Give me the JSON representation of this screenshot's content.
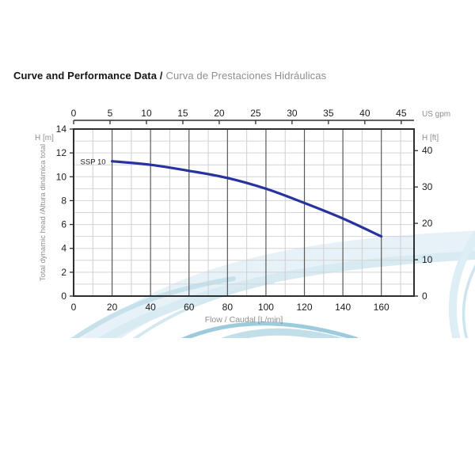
{
  "page": {
    "title_bold": "Curve and Performance Data /",
    "title_gray": "Curva de Prestaciones Hidráulicas"
  },
  "chart_data": {
    "type": "line",
    "title": "Curve and Performance Data / Curva de Prestaciones Hidráulicas",
    "series": [
      {
        "name": "SSP 10",
        "color": "#27339E",
        "x": [
          20,
          40,
          60,
          80,
          100,
          120,
          140,
          160
        ],
        "y": [
          11.3,
          11.0,
          10.5,
          9.9,
          9.0,
          7.8,
          6.5,
          5.0
        ]
      }
    ],
    "axes": {
      "x_bottom": {
        "title": "Flow / Caudal [L/min]",
        "min": 0,
        "max": 177,
        "major_ticks": [
          0,
          20,
          40,
          60,
          80,
          100,
          120,
          140,
          160
        ],
        "minor_tick_step": 10
      },
      "x_top": {
        "unit_label": "US gpm",
        "ticks": [
          0,
          5,
          10,
          15,
          20,
          25,
          30,
          35,
          40,
          45
        ]
      },
      "y_left": {
        "unit_label": "H [m]",
        "title": "Total dynamic head /Altura dinámica total",
        "min": 0,
        "max": 14,
        "major_ticks": [
          0,
          2,
          4,
          6,
          8,
          10,
          12,
          14
        ],
        "minor_tick_step": 1
      },
      "y_right": {
        "unit_label": "H [ft]",
        "ticks": [
          0,
          10,
          20,
          30,
          40
        ]
      }
    },
    "grid": {
      "horizontal": true,
      "vertical": true
    },
    "legend_position": "label-at-curve-start"
  }
}
